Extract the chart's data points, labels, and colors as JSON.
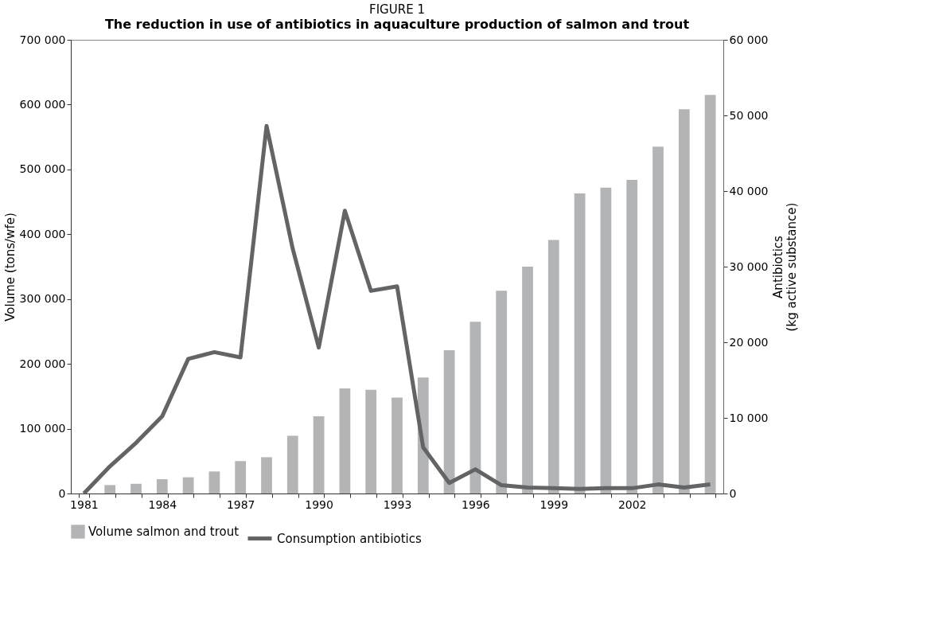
{
  "chart_data": {
    "type": "bar",
    "title": "FIGURE 1",
    "subtitle": "The reduction in use of antibiotics in aquaculture production of salmon and trout",
    "ylabel": "Volume (tons/wfe)",
    "y2label": "Antibiotics\n(kg active substance)",
    "categories": [
      "1981",
      null,
      null,
      "1984",
      null,
      null,
      "1987",
      null,
      null,
      "1990",
      null,
      null,
      "1993",
      null,
      null,
      "1996",
      null,
      null,
      "1999",
      null,
      null,
      "2002",
      null,
      null,
      null
    ],
    "series": [
      {
        "name": "Volume salmon and trout",
        "color": "#b3b4b6",
        "values": [
          null,
          13000,
          15000,
          22000,
          25000,
          34000,
          50000,
          56000,
          89000,
          119000,
          162000,
          160000,
          148000,
          179000,
          221000,
          265000,
          313000,
          350000,
          391000,
          463000,
          472000,
          484000,
          535000,
          593000,
          615000
        ]
      },
      {
        "name": "Consumption antibiotics",
        "type": "line",
        "axis": "y2",
        "color": "#636466",
        "values": [
          0,
          3600,
          6700,
          10200,
          17800,
          18700,
          18000,
          48600,
          32400,
          19300,
          37400,
          26800,
          27400,
          6100,
          1400,
          3200,
          1100,
          800,
          700,
          600,
          700,
          700,
          1200,
          800,
          1200
        ]
      }
    ],
    "ylim": [
      0,
      700000
    ],
    "yticks": [
      {
        "value": 0,
        "label": "0"
      },
      {
        "value": 100000,
        "label": "100 000"
      },
      {
        "value": 200000,
        "label": "200 000"
      },
      {
        "value": 300000,
        "label": "300 000"
      },
      {
        "value": 400000,
        "label": "400 000"
      },
      {
        "value": 500000,
        "label": "500 000"
      },
      {
        "value": 600000,
        "label": "600 000"
      },
      {
        "value": 700000,
        "label": "700 000"
      }
    ],
    "y2lim": [
      0,
      60000
    ],
    "y2ticks": [
      {
        "value": 0,
        "label": "0"
      },
      {
        "value": 10000,
        "label": "10 000"
      },
      {
        "value": 20000,
        "label": "20 000"
      },
      {
        "value": 30000,
        "label": "30 000"
      },
      {
        "value": 40000,
        "label": "40 000"
      },
      {
        "value": 50000,
        "label": "50 000"
      },
      {
        "value": 60000,
        "label": "60 000"
      }
    ],
    "grid": false,
    "legend": "bottom"
  }
}
